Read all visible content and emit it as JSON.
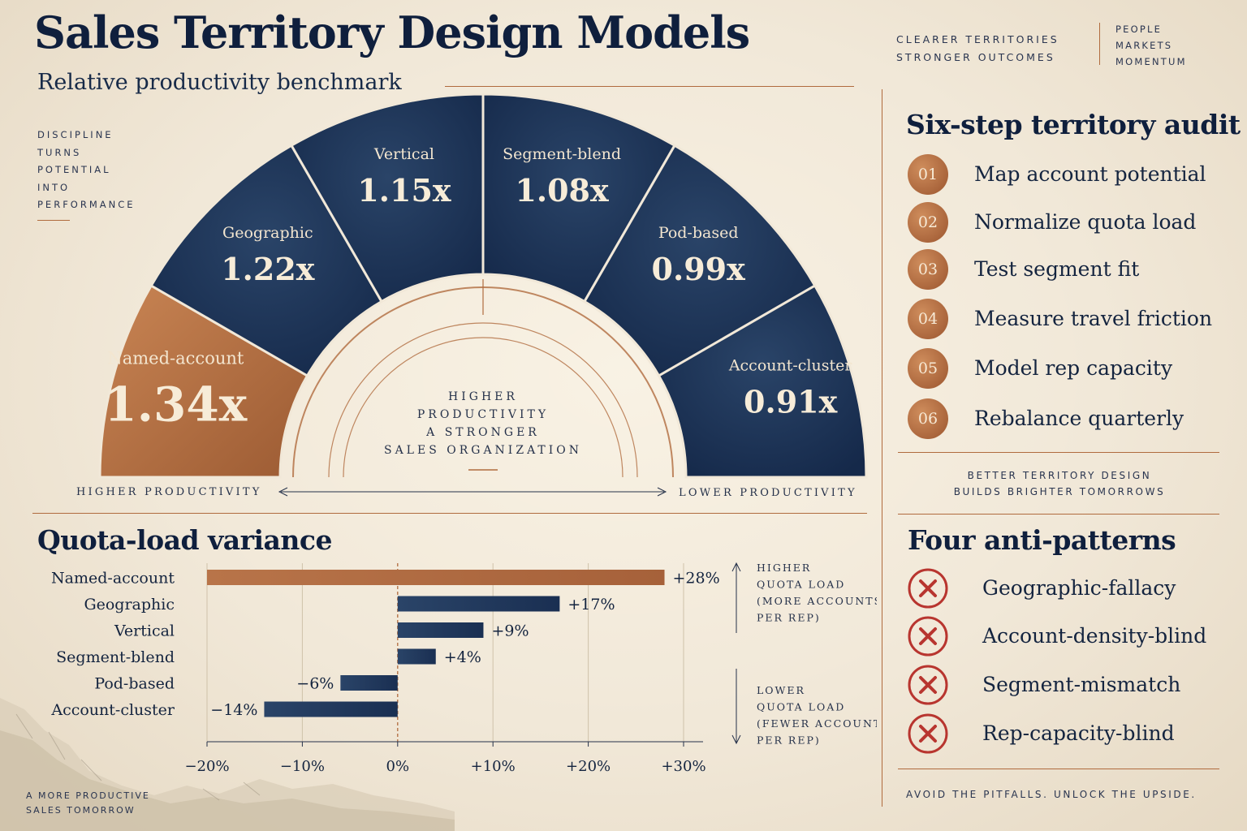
{
  "header": {
    "title": "Sales Territory Design Models",
    "subtitle": "Relative productivity benchmark",
    "tagline": [
      "CLEARER TERRITORIES",
      "STRONGER OUTCOMES"
    ],
    "tagline_right": [
      "PEOPLE",
      "MARKETS",
      "MOMENTUM"
    ]
  },
  "side_words": [
    "DISCIPLINE",
    "TURNS",
    "POTENTIAL",
    "INTO",
    "PERFORMANCE"
  ],
  "colors": {
    "navy": "#1d3558",
    "copper": "#b06b3e",
    "paper": "#f1e8d8",
    "red": "#b8352f"
  },
  "chart_data": [
    {
      "type": "pie",
      "variant": "semicircle",
      "title": "",
      "categories": [
        "Named-account",
        "Geographic",
        "Vertical",
        "Segment-blend",
        "Pod-based",
        "Account-cluster"
      ],
      "values": [
        1.34,
        1.22,
        1.15,
        1.08,
        0.99,
        0.91
      ],
      "value_labels": [
        "1.34x",
        "1.22x",
        "1.15x",
        "1.08x",
        "0.99x",
        "0.91x"
      ],
      "highlight": "Named-account",
      "center_text": [
        "HIGHER",
        "PRODUCTIVITY",
        "A STRONGER",
        "SALES ORGANIZATION"
      ],
      "axis_left": "HIGHER PRODUCTIVITY",
      "axis_right": "LOWER PRODUCTIVITY"
    },
    {
      "type": "bar",
      "orientation": "horizontal",
      "title": "Quota-load variance",
      "categories": [
        "Named-account",
        "Geographic",
        "Vertical",
        "Segment-blend",
        "Pod-based",
        "Account-cluster"
      ],
      "values": [
        28,
        17,
        9,
        4,
        -6,
        -14
      ],
      "value_labels": [
        "+28%",
        "+17%",
        "+9%",
        "+4%",
        "−6%",
        "−14%"
      ],
      "highlight": "Named-account",
      "xlim": [
        -20,
        30
      ],
      "ticks": [
        -20,
        -10,
        0,
        10,
        20,
        30
      ],
      "tick_labels": [
        "−20%",
        "−10%",
        "0%",
        "+10%",
        "+20%",
        "+30%"
      ],
      "grid": true,
      "annotations": {
        "higher": [
          "HIGHER",
          "QUOTA LOAD",
          "(MORE ACCOUNTS",
          "PER REP)"
        ],
        "lower": [
          "LOWER",
          "QUOTA LOAD",
          "(FEWER ACCOUNTS",
          "PER REP)"
        ]
      }
    }
  ],
  "audit": {
    "title": "Six-step territory audit",
    "steps": [
      {
        "num": "01",
        "label": "Map account potential"
      },
      {
        "num": "02",
        "label": "Normalize quota load"
      },
      {
        "num": "03",
        "label": "Test segment fit"
      },
      {
        "num": "04",
        "label": "Measure travel friction"
      },
      {
        "num": "05",
        "label": "Model rep capacity"
      },
      {
        "num": "06",
        "label": "Rebalance quarterly"
      }
    ],
    "footer": [
      "BETTER TERRITORY DESIGN",
      "BUILDS BRIGHTER TOMORROWS"
    ]
  },
  "anti_patterns": {
    "title": "Four anti-patterns",
    "items": [
      "Geographic-fallacy",
      "Account-density-blind",
      "Segment-mismatch",
      "Rep-capacity-blind"
    ],
    "icon": "x-circle-icon",
    "footer": "AVOID THE PITFALLS. UNLOCK THE UPSIDE."
  },
  "bottom_left": [
    "A MORE PRODUCTIVE",
    "SALES TOMORROW"
  ]
}
